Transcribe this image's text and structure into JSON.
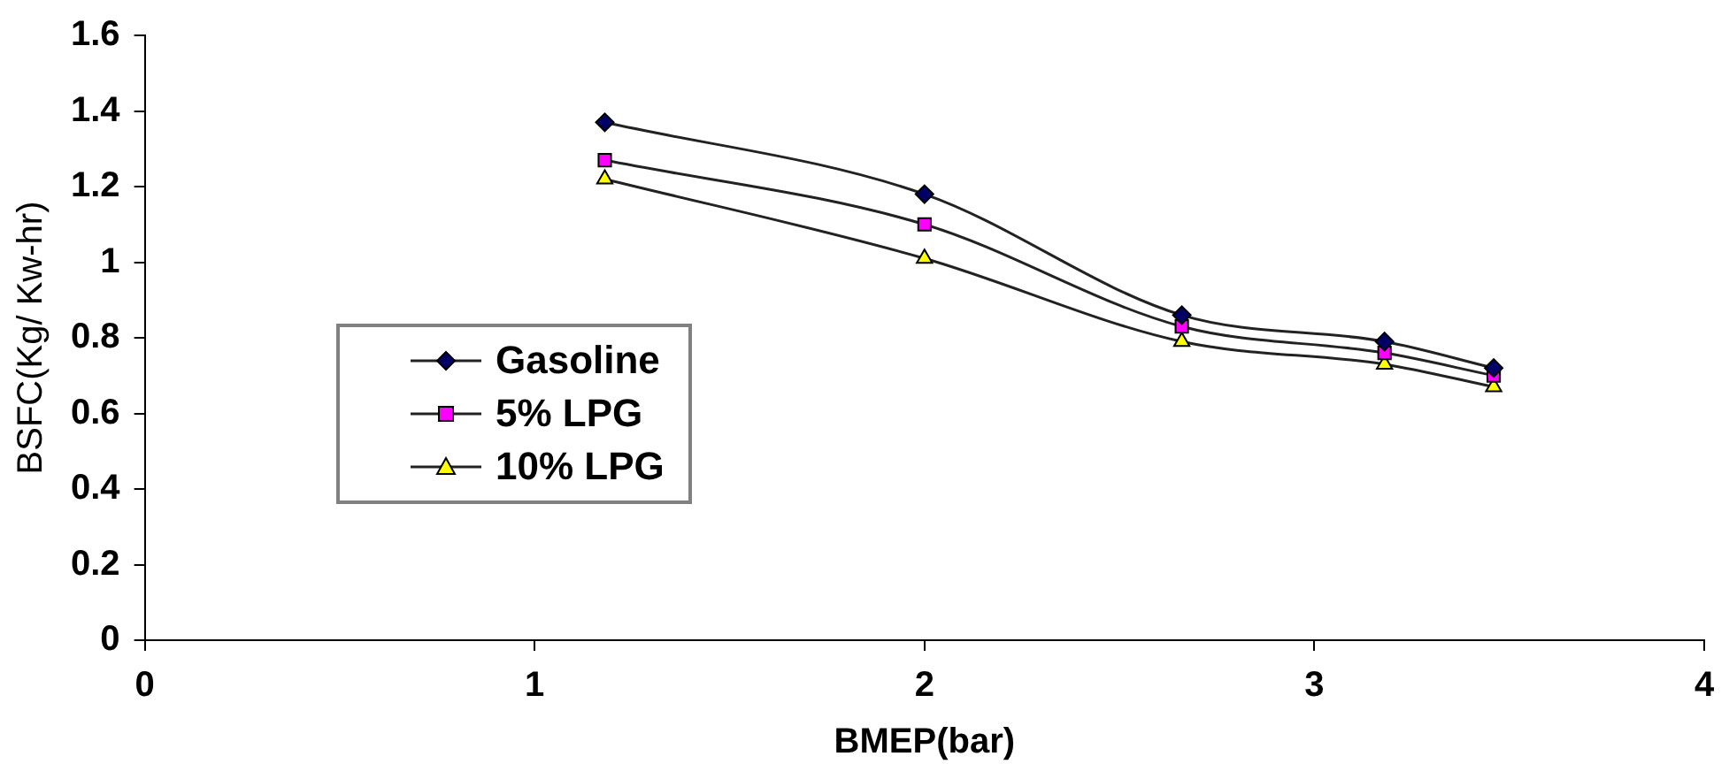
{
  "chart_data": {
    "type": "line",
    "xlabel": "BMEP(bar)",
    "ylabel": "BSFC(Kg/ Kw-hr)",
    "x": [
      1.18,
      2.0,
      2.66,
      3.18,
      3.46
    ],
    "series": [
      {
        "name": "Gasoline",
        "color": "#000066",
        "marker": "diamond",
        "values": [
          1.37,
          1.18,
          0.86,
          0.79,
          0.72
        ]
      },
      {
        "name": "5% LPG",
        "color": "#ff00ff",
        "marker": "square",
        "values": [
          1.27,
          1.1,
          0.83,
          0.76,
          0.7
        ]
      },
      {
        "name": "10% LPG",
        "color": "#ffff00",
        "marker": "triangle",
        "values": [
          1.22,
          1.01,
          0.79,
          0.73,
          0.67
        ]
      }
    ],
    "xlim": [
      0,
      4
    ],
    "xticks": [
      0,
      1,
      2,
      3,
      4
    ],
    "ylim": [
      0,
      1.6
    ],
    "yticks": [
      0,
      0.2,
      0.4,
      0.6,
      0.8,
      1,
      1.2,
      1.4,
      1.6
    ],
    "grid": false,
    "legend": "left"
  }
}
